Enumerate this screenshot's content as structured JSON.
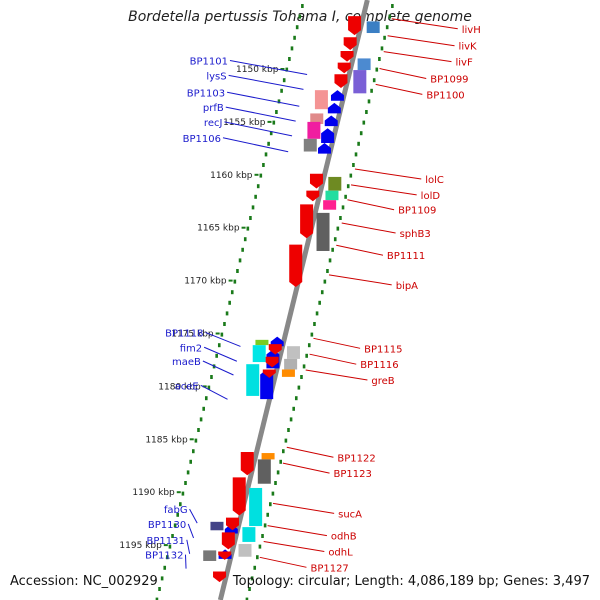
{
  "title": "Bordetella pertussis Tohama I, complete genome",
  "accession_text": "Accession: NC_002929",
  "topology_text": "Topology: circular; Length: 4,086,189 bp; Genes: 3,497",
  "colors": {
    "forward_label": "#1a1acc",
    "reverse_label": "#cc0000",
    "tick_dots": "#1a7a1a",
    "axis": "#888888",
    "forward_arrow": "#0000ee",
    "reverse_arrow": "#ee0000"
  },
  "ticks": [
    {
      "kbp": 1150,
      "label": "1150 kbp"
    },
    {
      "kbp": 1155,
      "label": "1155 kbp"
    },
    {
      "kbp": 1160,
      "label": "1160 kbp"
    },
    {
      "kbp": 1165,
      "label": "1165 kbp"
    },
    {
      "kbp": 1170,
      "label": "1170 kbp"
    },
    {
      "kbp": 1175,
      "label": "1175 kbp"
    },
    {
      "kbp": 1180,
      "label": "1180 kbp"
    },
    {
      "kbp": 1185,
      "label": "1185 kbp"
    },
    {
      "kbp": 1190,
      "label": "1190 kbp"
    },
    {
      "kbp": 1195,
      "label": "1195 kbp"
    }
  ],
  "forward_genes": [
    {
      "name": "BP1101",
      "kbp": 1149.2
    },
    {
      "name": "lysS",
      "kbp": 1150.6
    },
    {
      "name": "BP1103",
      "kbp": 1152.2
    },
    {
      "name": "prfB",
      "kbp": 1153.6
    },
    {
      "name": "recJ",
      "kbp": 1155.0
    },
    {
      "name": "BP1106",
      "kbp": 1156.5
    },
    {
      "name": "BP1118",
      "kbp": 1174.9
    },
    {
      "name": "fim2",
      "kbp": 1176.3
    },
    {
      "name": "maeB",
      "kbp": 1177.6
    },
    {
      "name": "aceE",
      "kbp": 1179.9
    },
    {
      "name": "fabG",
      "kbp": 1191.6
    },
    {
      "name": "BP1130",
      "kbp": 1193.0
    },
    {
      "name": "BP1131",
      "kbp": 1194.5
    },
    {
      "name": "BP1132",
      "kbp": 1195.9
    }
  ],
  "reverse_genes": [
    {
      "name": "livH",
      "kbp": 1146.2
    },
    {
      "name": "livK",
      "kbp": 1147.8
    },
    {
      "name": "livF",
      "kbp": 1149.3
    },
    {
      "name": "BP1099",
      "kbp": 1150.9
    },
    {
      "name": "BP1100",
      "kbp": 1152.4
    },
    {
      "name": "lolC",
      "kbp": 1160.4
    },
    {
      "name": "lolD",
      "kbp": 1161.9
    },
    {
      "name": "BP1109",
      "kbp": 1163.3
    },
    {
      "name": "sphB3",
      "kbp": 1165.5
    },
    {
      "name": "BP1111",
      "kbp": 1167.6
    },
    {
      "name": "bipA",
      "kbp": 1170.4
    },
    {
      "name": "BP1115",
      "kbp": 1176.4
    },
    {
      "name": "BP1116",
      "kbp": 1177.9
    },
    {
      "name": "greB",
      "kbp": 1179.4
    },
    {
      "name": "BP1122",
      "kbp": 1186.7
    },
    {
      "name": "BP1123",
      "kbp": 1188.2
    },
    {
      "name": "sucA",
      "kbp": 1192.0
    },
    {
      "name": "odhB",
      "kbp": 1194.1
    },
    {
      "name": "odhL",
      "kbp": 1195.6
    },
    {
      "name": "BP1127",
      "kbp": 1197.1
    }
  ]
}
